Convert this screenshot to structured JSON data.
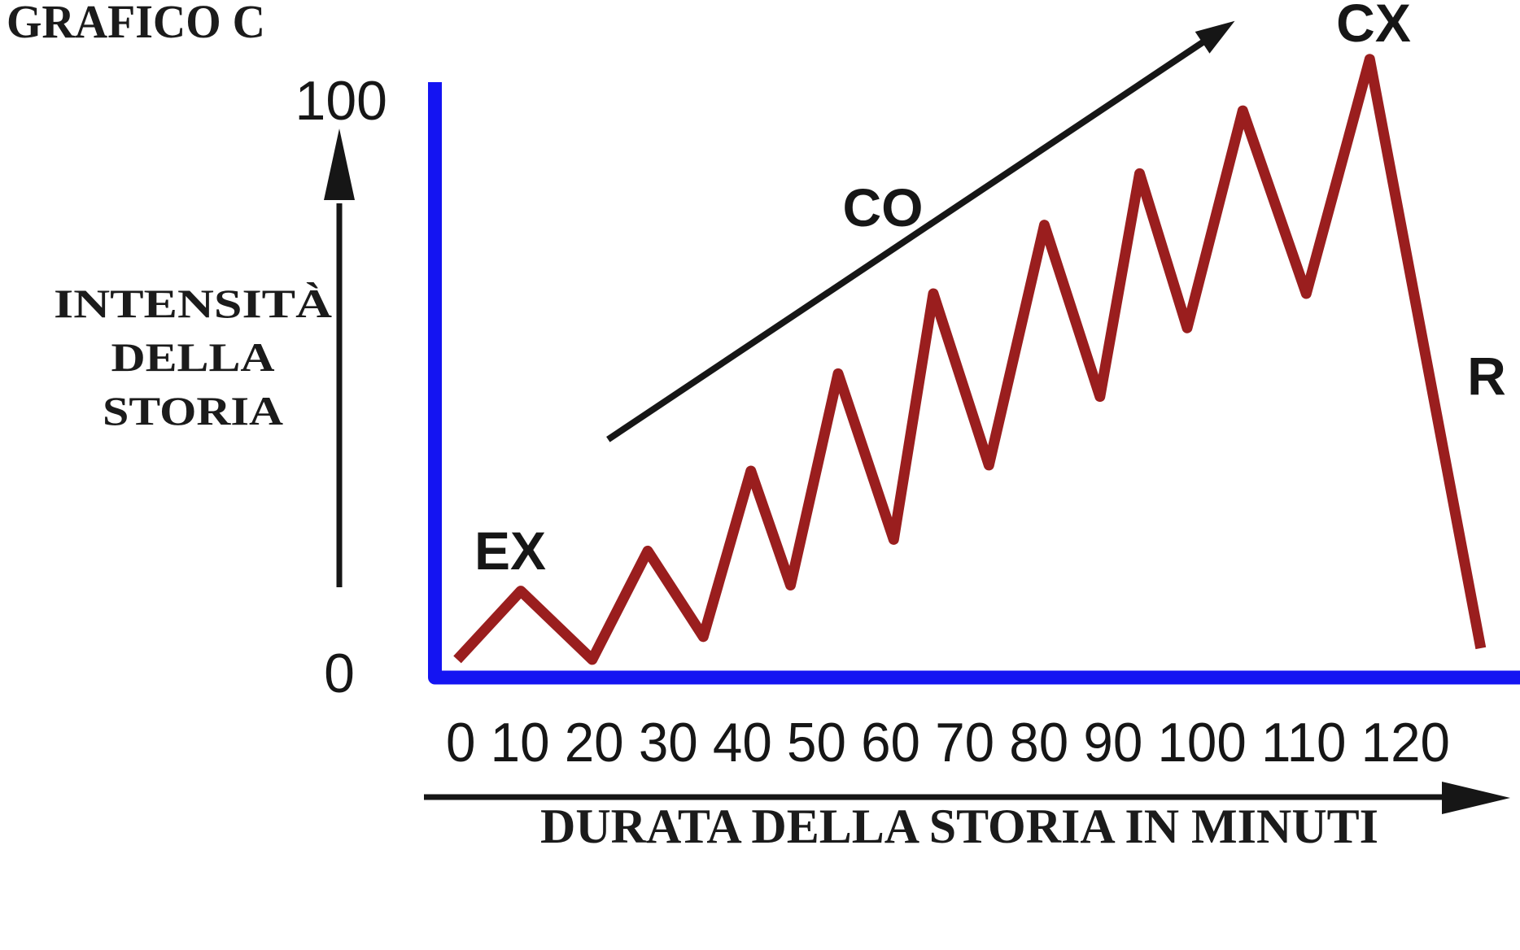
{
  "title": "GRAFICO C",
  "y_axis": {
    "label_line1": "INTENSITÀ",
    "label_line2": "DELLA",
    "label_line3": "STORIA",
    "max_tick": "100",
    "min_tick": "0"
  },
  "x_axis": {
    "tick_row": "0 10 20 30 40 50 60 70 80 90 100 110 120",
    "label": "DURATA DELLA STORIA IN MINUTI"
  },
  "annotations": {
    "exposition": "EX",
    "rising_action": "CO",
    "climax": "CX",
    "resolution": "R"
  },
  "colors": {
    "line": "#9a1e1e",
    "axis": "#1414f2",
    "ink": "#161616"
  },
  "chart_data": {
    "type": "line",
    "title": "GRAFICO C",
    "xlabel": "DURATA DELLA STORIA IN MINUTI",
    "ylabel": "INTENSITÀ DELLA STORIA",
    "x_ticks": [
      0,
      10,
      20,
      30,
      40,
      50,
      60,
      70,
      80,
      90,
      100,
      110,
      120
    ],
    "ylim": [
      0,
      100
    ],
    "grid": false,
    "legend": false,
    "series": [
      {
        "name": "intensità della storia",
        "color": "#9a1e1e",
        "points": [
          [
            0,
            2
          ],
          [
            8,
            14
          ],
          [
            17,
            2
          ],
          [
            24,
            21
          ],
          [
            31,
            6
          ],
          [
            37,
            35
          ],
          [
            42,
            15
          ],
          [
            48,
            52
          ],
          [
            55,
            23
          ],
          [
            60,
            66
          ],
          [
            67,
            36
          ],
          [
            74,
            78
          ],
          [
            81,
            48
          ],
          [
            86,
            87
          ],
          [
            92,
            60
          ],
          [
            99,
            98
          ],
          [
            107,
            66
          ],
          [
            115,
            107
          ],
          [
            129,
            4
          ]
        ]
      }
    ],
    "annotations": [
      {
        "text": "EX",
        "x": 6.7,
        "y": 21
      },
      {
        "text": "CO",
        "x": 53.6,
        "y": 81
      },
      {
        "text": "CX",
        "x": 115.4,
        "y": 113
      },
      {
        "text": "R",
        "x": 129.6,
        "y": 52
      }
    ],
    "rising_arrow": {
      "from": [
        19,
        40.5
      ],
      "to": [
        98,
        113.7
      ]
    }
  }
}
